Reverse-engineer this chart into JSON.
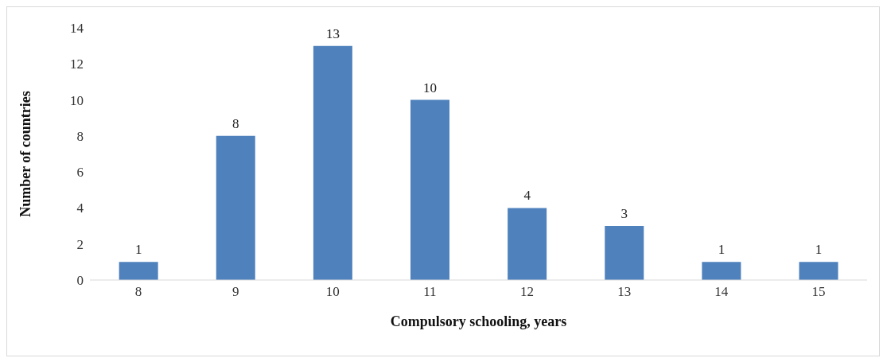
{
  "chart_data": {
    "type": "bar",
    "xlabel": "Compulsory schooling, years",
    "ylabel": "Number of countries",
    "categories": [
      "8",
      "9",
      "10",
      "11",
      "12",
      "13",
      "14",
      "15"
    ],
    "values": [
      1,
      8,
      13,
      10,
      4,
      3,
      1,
      1
    ],
    "color": "#4f81bd",
    "ylim": [
      0,
      14
    ],
    "yticks": [
      0,
      2,
      4,
      6,
      8,
      10,
      12,
      14
    ],
    "grid": false,
    "data_labels": true
  }
}
